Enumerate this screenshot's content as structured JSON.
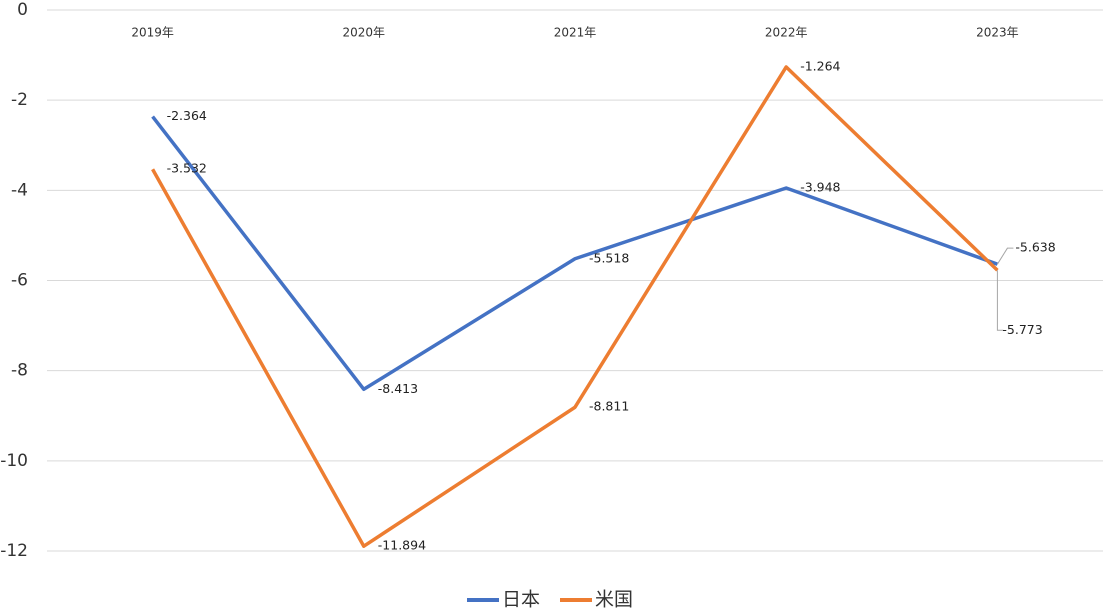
{
  "chart_data": {
    "type": "line",
    "categories": [
      "2019年",
      "2020年",
      "2021年",
      "2022年",
      "2023年"
    ],
    "series": [
      {
        "name": "日本",
        "color": "#4472c4",
        "values": [
          -2.364,
          -8.413,
          -5.518,
          -3.948,
          -5.638
        ]
      },
      {
        "name": "米国",
        "color": "#ed7d31",
        "values": [
          -3.532,
          -11.894,
          -8.811,
          -1.264,
          -5.773
        ]
      }
    ],
    "ylim": [
      -12,
      0
    ],
    "yticks": [
      0,
      -2,
      -4,
      -6,
      -8,
      -10,
      -12
    ],
    "grid": true,
    "legend": "bottom"
  }
}
